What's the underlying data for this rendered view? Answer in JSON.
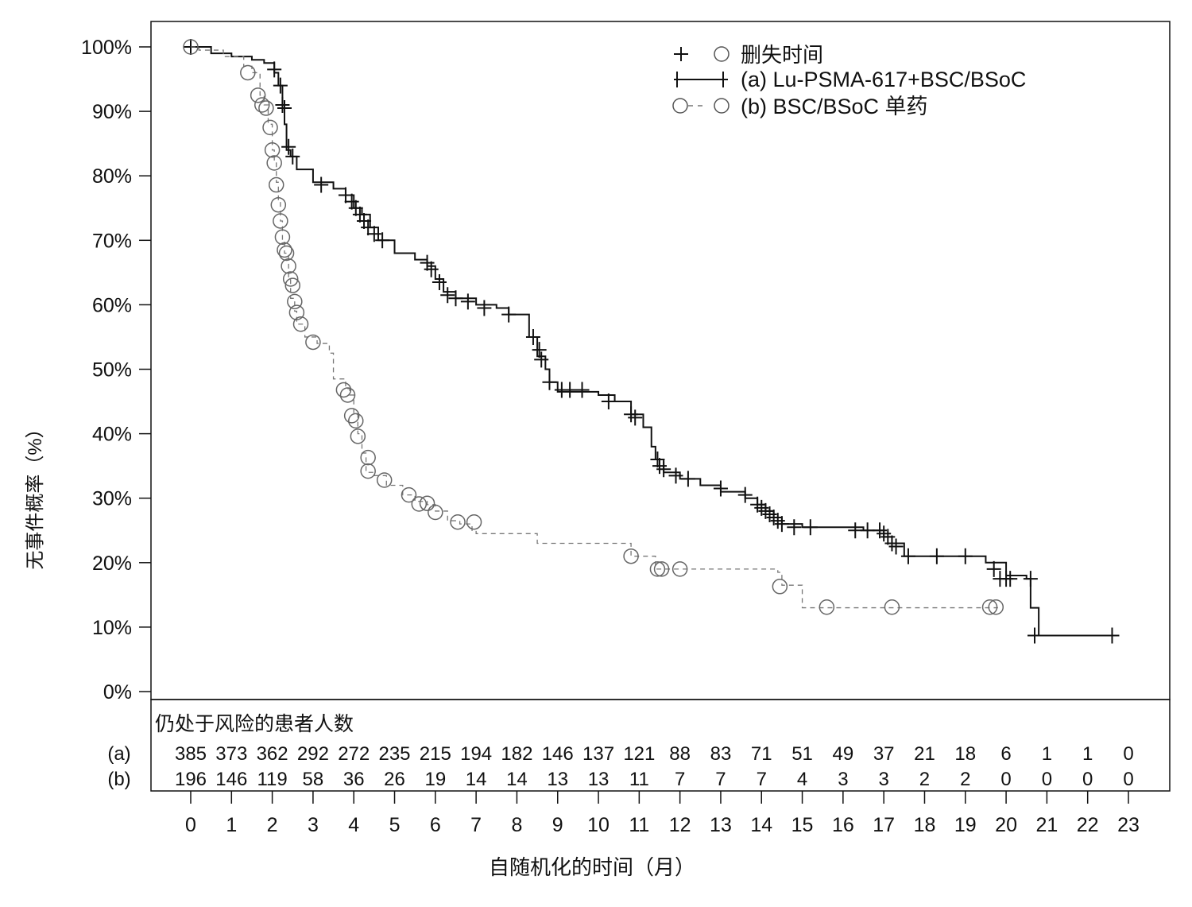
{
  "chart_data": {
    "type": "line",
    "subtype": "kaplan-meier",
    "ylabel": "无事件概率（%）",
    "xlabel": "自随机化的时间（月）",
    "xlim": [
      0,
      23
    ],
    "ylim": [
      0,
      100
    ],
    "x_ticks": [
      "0",
      "1",
      "2",
      "3",
      "4",
      "5",
      "6",
      "7",
      "8",
      "9",
      "10",
      "11",
      "12",
      "13",
      "14",
      "15",
      "16",
      "17",
      "18",
      "19",
      "20",
      "21",
      "22",
      "23"
    ],
    "y_ticks": [
      "0%",
      "10%",
      "20%",
      "30%",
      "40%",
      "50%",
      "60%",
      "70%",
      "80%",
      "90%",
      "100%"
    ],
    "legend": {
      "position": "top-right",
      "censor_label": "删失时间",
      "entries": [
        "(a) Lu-PSMA-617+BSC/BSoC",
        "(b) BSC/BSoC 单药"
      ]
    },
    "series": [
      {
        "name": "(a) Lu-PSMA-617+BSC/BSoC",
        "color": "#111111",
        "style": "solid",
        "steps": [
          [
            0,
            100
          ],
          [
            0.5,
            99
          ],
          [
            1,
            98.5
          ],
          [
            1.5,
            98
          ],
          [
            1.8,
            97.5
          ],
          [
            2.05,
            96
          ],
          [
            2.15,
            94
          ],
          [
            2.25,
            91
          ],
          [
            2.3,
            88
          ],
          [
            2.35,
            84
          ],
          [
            2.45,
            83
          ],
          [
            2.6,
            81
          ],
          [
            3,
            79
          ],
          [
            3.5,
            78
          ],
          [
            3.8,
            77
          ],
          [
            4,
            75
          ],
          [
            4.2,
            74
          ],
          [
            4.4,
            72
          ],
          [
            4.6,
            70
          ],
          [
            5,
            68
          ],
          [
            5.5,
            67
          ],
          [
            5.8,
            66
          ],
          [
            6,
            64
          ],
          [
            6.2,
            62
          ],
          [
            6.5,
            61
          ],
          [
            7,
            60
          ],
          [
            7.5,
            59.5
          ],
          [
            7.8,
            58.5
          ],
          [
            8.3,
            55
          ],
          [
            8.5,
            52
          ],
          [
            8.7,
            50
          ],
          [
            8.8,
            48
          ],
          [
            9,
            46.5
          ],
          [
            10,
            46
          ],
          [
            10.4,
            45
          ],
          [
            10.8,
            43
          ],
          [
            11.1,
            41
          ],
          [
            11.3,
            38
          ],
          [
            11.4,
            36
          ],
          [
            11.6,
            34
          ],
          [
            12,
            33
          ],
          [
            12.5,
            32
          ],
          [
            13,
            31
          ],
          [
            13.6,
            30
          ],
          [
            13.9,
            29
          ],
          [
            14.1,
            28
          ],
          [
            14.3,
            27
          ],
          [
            14.5,
            26
          ],
          [
            15,
            25.5
          ],
          [
            16.5,
            25
          ],
          [
            17,
            24
          ],
          [
            17.2,
            23
          ],
          [
            17.5,
            21
          ],
          [
            19.5,
            20
          ],
          [
            20,
            18
          ],
          [
            20.5,
            17.5
          ],
          [
            20.6,
            13
          ],
          [
            20.8,
            8.7
          ],
          [
            22.6,
            8.7
          ]
        ],
        "censored": [
          [
            0,
            100
          ],
          [
            2.05,
            96.5
          ],
          [
            2.2,
            94
          ],
          [
            2.25,
            91
          ],
          [
            2.3,
            90.5
          ],
          [
            2.4,
            84.5
          ],
          [
            2.5,
            83
          ],
          [
            3.2,
            78.6
          ],
          [
            3.8,
            77
          ],
          [
            3.95,
            76
          ],
          [
            4.05,
            75
          ],
          [
            4.15,
            74
          ],
          [
            4.25,
            73
          ],
          [
            4.35,
            72
          ],
          [
            4.5,
            71
          ],
          [
            4.7,
            70
          ],
          [
            5.8,
            66.5
          ],
          [
            5.9,
            65.5
          ],
          [
            6.1,
            63.5
          ],
          [
            6.3,
            61.5
          ],
          [
            6.5,
            61
          ],
          [
            6.8,
            60.5
          ],
          [
            7.2,
            59.5
          ],
          [
            7.8,
            58.5
          ],
          [
            8.4,
            55
          ],
          [
            8.55,
            53
          ],
          [
            8.6,
            51.5
          ],
          [
            8.8,
            48
          ],
          [
            9.1,
            46.8
          ],
          [
            9.3,
            46.8
          ],
          [
            9.6,
            46.8
          ],
          [
            10.25,
            45
          ],
          [
            10.8,
            43
          ],
          [
            10.9,
            42.5
          ],
          [
            11.45,
            36
          ],
          [
            11.5,
            35
          ],
          [
            11.6,
            34.5
          ],
          [
            11.9,
            33.5
          ],
          [
            12.2,
            33
          ],
          [
            13,
            31.5
          ],
          [
            13.6,
            30.5
          ],
          [
            13.9,
            29
          ],
          [
            14,
            28.5
          ],
          [
            14.1,
            28
          ],
          [
            14.2,
            27.5
          ],
          [
            14.3,
            27
          ],
          [
            14.4,
            26.5
          ],
          [
            14.5,
            26
          ],
          [
            14.8,
            25.5
          ],
          [
            15.2,
            25.5
          ],
          [
            16.3,
            25
          ],
          [
            16.6,
            25
          ],
          [
            16.9,
            25
          ],
          [
            17,
            24.5
          ],
          [
            17.1,
            24
          ],
          [
            17.2,
            23
          ],
          [
            17.3,
            22.5
          ],
          [
            17.6,
            21
          ],
          [
            18.3,
            21
          ],
          [
            19,
            21
          ],
          [
            19.7,
            19
          ],
          [
            19.85,
            17.5
          ],
          [
            20,
            17.5
          ],
          [
            20.1,
            17.5
          ],
          [
            20.6,
            17.5
          ],
          [
            20.7,
            8.7
          ],
          [
            22.6,
            8.7
          ]
        ]
      },
      {
        "name": "(b) BSC/BSoC 单药",
        "color": "#777777",
        "style": "dashed",
        "steps": [
          [
            0,
            100
          ],
          [
            0.2,
            99.5
          ],
          [
            0.8,
            98.5
          ],
          [
            1.3,
            97
          ],
          [
            1.5,
            96
          ],
          [
            1.7,
            92.5
          ],
          [
            1.8,
            91
          ],
          [
            1.9,
            88
          ],
          [
            2,
            84
          ],
          [
            2.05,
            82
          ],
          [
            2.1,
            79
          ],
          [
            2.15,
            76
          ],
          [
            2.2,
            73
          ],
          [
            2.25,
            70
          ],
          [
            2.3,
            68
          ],
          [
            2.4,
            64
          ],
          [
            2.45,
            61
          ],
          [
            2.55,
            59
          ],
          [
            2.6,
            57
          ],
          [
            2.8,
            55
          ],
          [
            3.1,
            54
          ],
          [
            3.4,
            52.5
          ],
          [
            3.5,
            48.5
          ],
          [
            3.8,
            47
          ],
          [
            3.9,
            46
          ],
          [
            4,
            43
          ],
          [
            4.1,
            40
          ],
          [
            4.2,
            37
          ],
          [
            4.3,
            34
          ],
          [
            4.5,
            33.5
          ],
          [
            4.8,
            32
          ],
          [
            5.2,
            30.5
          ],
          [
            5.5,
            29.5
          ],
          [
            5.8,
            29
          ],
          [
            6,
            28
          ],
          [
            6.3,
            26.5
          ],
          [
            6.6,
            26
          ],
          [
            6.9,
            25
          ],
          [
            7,
            24.5
          ],
          [
            8.5,
            23
          ],
          [
            10.8,
            21
          ],
          [
            11.4,
            19
          ],
          [
            14.4,
            18.5
          ],
          [
            14.5,
            16.5
          ],
          [
            15,
            13
          ],
          [
            19.8,
            13
          ]
        ],
        "censored": [
          [
            0,
            100
          ],
          [
            1.4,
            96
          ],
          [
            1.65,
            92.5
          ],
          [
            1.75,
            91
          ],
          [
            1.85,
            90.5
          ],
          [
            1.95,
            87.5
          ],
          [
            2,
            84
          ],
          [
            2.05,
            82
          ],
          [
            2.1,
            78.6
          ],
          [
            2.15,
            75.5
          ],
          [
            2.2,
            73
          ],
          [
            2.25,
            70.5
          ],
          [
            2.3,
            68.5
          ],
          [
            2.35,
            68
          ],
          [
            2.4,
            66
          ],
          [
            2.45,
            64
          ],
          [
            2.5,
            63
          ],
          [
            2.55,
            60.5
          ],
          [
            2.6,
            58.8
          ],
          [
            2.7,
            57
          ],
          [
            3,
            54.2
          ],
          [
            3.75,
            46.8
          ],
          [
            3.85,
            46
          ],
          [
            3.95,
            42.8
          ],
          [
            4.05,
            42
          ],
          [
            4.1,
            39.6
          ],
          [
            4.35,
            36.3
          ],
          [
            4.35,
            34.2
          ],
          [
            4.75,
            32.8
          ],
          [
            5.35,
            30.5
          ],
          [
            5.6,
            29.1
          ],
          [
            5.8,
            29.2
          ],
          [
            6,
            27.8
          ],
          [
            6.55,
            26.3
          ],
          [
            6.95,
            26.3
          ],
          [
            10.8,
            21
          ],
          [
            11.45,
            19
          ],
          [
            11.55,
            19
          ],
          [
            12,
            19
          ],
          [
            14.45,
            16.3
          ],
          [
            15.6,
            13.1
          ],
          [
            17.2,
            13.1
          ],
          [
            19.6,
            13.1
          ],
          [
            19.75,
            13.1
          ]
        ]
      }
    ],
    "risk_table": {
      "title": "仍处于风险的患者人数",
      "rows": [
        {
          "label": "(a)",
          "values": [
            "385",
            "373",
            "362",
            "292",
            "272",
            "235",
            "215",
            "194",
            "182",
            "146",
            "137",
            "121",
            "88",
            "83",
            "71",
            "51",
            "49",
            "37",
            "21",
            "18",
            "6",
            "1",
            "1",
            "0"
          ]
        },
        {
          "label": "(b)",
          "values": [
            "196",
            "146",
            "119",
            "58",
            "36",
            "26",
            "19",
            "14",
            "14",
            "13",
            "13",
            "11",
            "7",
            "7",
            "7",
            "4",
            "3",
            "3",
            "2",
            "2",
            "0",
            "0",
            "0",
            "0"
          ]
        }
      ]
    }
  }
}
